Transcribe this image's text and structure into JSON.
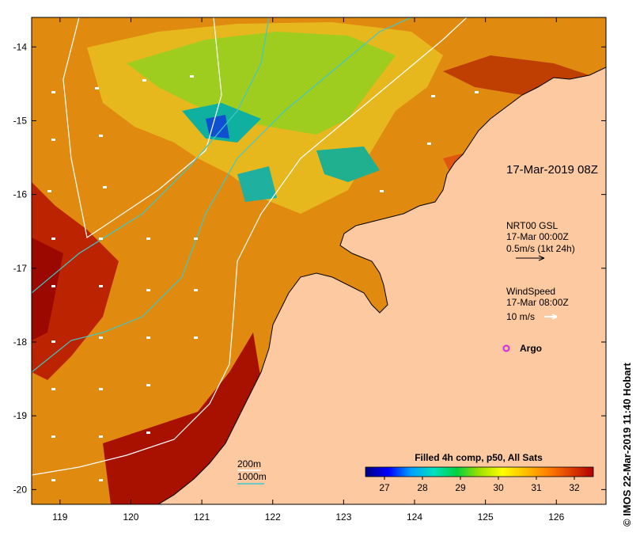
{
  "map": {
    "lon_ticks": [
      "119",
      "120",
      "121",
      "122",
      "123",
      "124",
      "125",
      "126"
    ],
    "lat_ticks": [
      "-14",
      "-15",
      "-16",
      "-17",
      "-18",
      "-19",
      "-20"
    ],
    "lon_range": [
      118.6,
      126.7
    ],
    "lat_range": [
      -20.2,
      -13.6
    ]
  },
  "annotations": {
    "timestamp": "17-Mar-2019 08Z",
    "current_title": "NRT00 GSL",
    "current_time": "17-Mar 00:00Z",
    "current_scale": "0.5m/s (1kt 24h)",
    "wind_title": "WindSpeed",
    "wind_time": "17-Mar 08:00Z",
    "wind_scale": "10 m/s",
    "argo_label": "Argo",
    "argo_color": "#e020e0"
  },
  "bathymetry_legend": {
    "label_200": "200m",
    "label_1000": "1000m",
    "color_200": "#ffffff",
    "color_1000": "#40c8c8"
  },
  "colorbar": {
    "title": "Filled 4h comp, p50, All Sats",
    "ticks": [
      "27",
      "28",
      "29",
      "30",
      "31",
      "32"
    ],
    "range": [
      26.5,
      32.5
    ],
    "colors": [
      "#000080",
      "#0000ff",
      "#00a0ff",
      "#00e0c0",
      "#00d040",
      "#a0e000",
      "#ffff00",
      "#ffc000",
      "#ff8000",
      "#e04000",
      "#b00000"
    ]
  },
  "credit": "© IMOS 22-Mar-2019 11:40 Hobart",
  "colors": {
    "land": "#fcc9a0",
    "coast": "#000000",
    "sea_warm": "#e08a10",
    "sea_hot": "#a81000"
  }
}
